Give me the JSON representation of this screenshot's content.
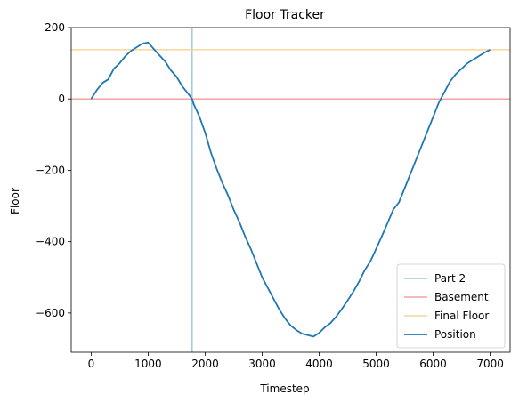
{
  "chart_data": {
    "type": "line",
    "title": "Floor Tracker",
    "xlabel": "Timestep",
    "ylabel": "Floor",
    "xlim": [
      -350,
      7350
    ],
    "ylim": [
      -710,
      200
    ],
    "xticks": [
      0,
      1000,
      2000,
      3000,
      4000,
      5000,
      6000,
      7000
    ],
    "yticks": [
      200,
      0,
      -200,
      -400,
      -600
    ],
    "ytick_labels": [
      "200",
      "0",
      "−200",
      "−400",
      "−600"
    ],
    "grid": false,
    "legend_position": "lower-right",
    "reference_lines": [
      {
        "name": "Part 2",
        "orientation": "vertical",
        "value": 1771,
        "color": "#9ecae1"
      },
      {
        "name": "Basement",
        "orientation": "horizontal",
        "value": 0,
        "color": "#f4a3a3"
      },
      {
        "name": "Final Floor",
        "orientation": "horizontal",
        "value": 138,
        "color": "#f7d69a"
      }
    ],
    "series": [
      {
        "name": "Position",
        "color": "#1f77b4",
        "x": [
          0,
          100,
          200,
          300,
          400,
          500,
          600,
          700,
          800,
          900,
          1000,
          1100,
          1200,
          1300,
          1400,
          1500,
          1600,
          1700,
          1771,
          1800,
          1900,
          2000,
          2100,
          2200,
          2300,
          2400,
          2500,
          2600,
          2700,
          2800,
          2900,
          3000,
          3100,
          3200,
          3300,
          3400,
          3500,
          3600,
          3700,
          3800,
          3900,
          4000,
          4100,
          4200,
          4300,
          4400,
          4500,
          4600,
          4700,
          4800,
          4900,
          5000,
          5100,
          5200,
          5300,
          5400,
          5500,
          5600,
          5700,
          5800,
          5900,
          6000,
          6100,
          6200,
          6300,
          6400,
          6500,
          6600,
          6700,
          6800,
          6900,
          7000
        ],
        "y": [
          0,
          25,
          45,
          55,
          85,
          100,
          120,
          135,
          145,
          155,
          158,
          140,
          122,
          105,
          80,
          62,
          35,
          15,
          0,
          -15,
          -50,
          -95,
          -150,
          -195,
          -235,
          -270,
          -310,
          -345,
          -385,
          -420,
          -460,
          -500,
          -530,
          -560,
          -590,
          -615,
          -635,
          -648,
          -658,
          -662,
          -666,
          -656,
          -640,
          -628,
          -610,
          -588,
          -565,
          -540,
          -512,
          -480,
          -455,
          -420,
          -385,
          -348,
          -310,
          -290,
          -250,
          -210,
          -170,
          -130,
          -90,
          -50,
          -10,
          20,
          50,
          70,
          85,
          100,
          110,
          120,
          130,
          138
        ]
      }
    ]
  }
}
